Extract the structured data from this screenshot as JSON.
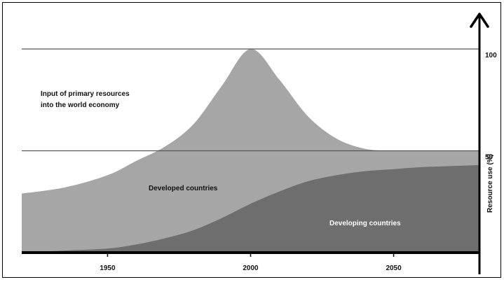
{
  "chart_data": {
    "type": "area",
    "ylabel": "Resource use (%)",
    "ylim": [
      0,
      100
    ],
    "xlim": [
      1920,
      2080
    ],
    "y_ticks": [
      "50",
      "100"
    ],
    "x_ticks": [
      "1950",
      "2000",
      "2050"
    ],
    "grid": "horizontal lines at 50 and 100",
    "annotations": {
      "total": "Input of primary resources\ninto the world economy",
      "developed": "Developed countries",
      "developing": "Developing countries"
    },
    "series": [
      {
        "name": "Developed countries",
        "color": "#a6a6a6",
        "x": [
          1920,
          1935,
          1950,
          1960,
          1970,
          1980,
          1990,
          2000,
          2010,
          2020,
          2030,
          2040,
          2050,
          2060,
          2070,
          2080
        ],
        "values": [
          29,
          32,
          38,
          45,
          52,
          63,
          82,
          100,
          85,
          67,
          56,
          51,
          50,
          50,
          50,
          50
        ]
      },
      {
        "name": "Developing countries",
        "color": "#6e6e6e",
        "x": [
          1920,
          1935,
          1950,
          1960,
          1970,
          1980,
          1990,
          2000,
          2010,
          2020,
          2030,
          2040,
          2050,
          2060,
          2070,
          2080
        ],
        "values": [
          0,
          1,
          2,
          4,
          7,
          11,
          17,
          24,
          30,
          35,
          38,
          40,
          41,
          42,
          42.5,
          43
        ]
      }
    ]
  },
  "colors": {
    "axis": "#000000",
    "gridline": "#555555"
  }
}
